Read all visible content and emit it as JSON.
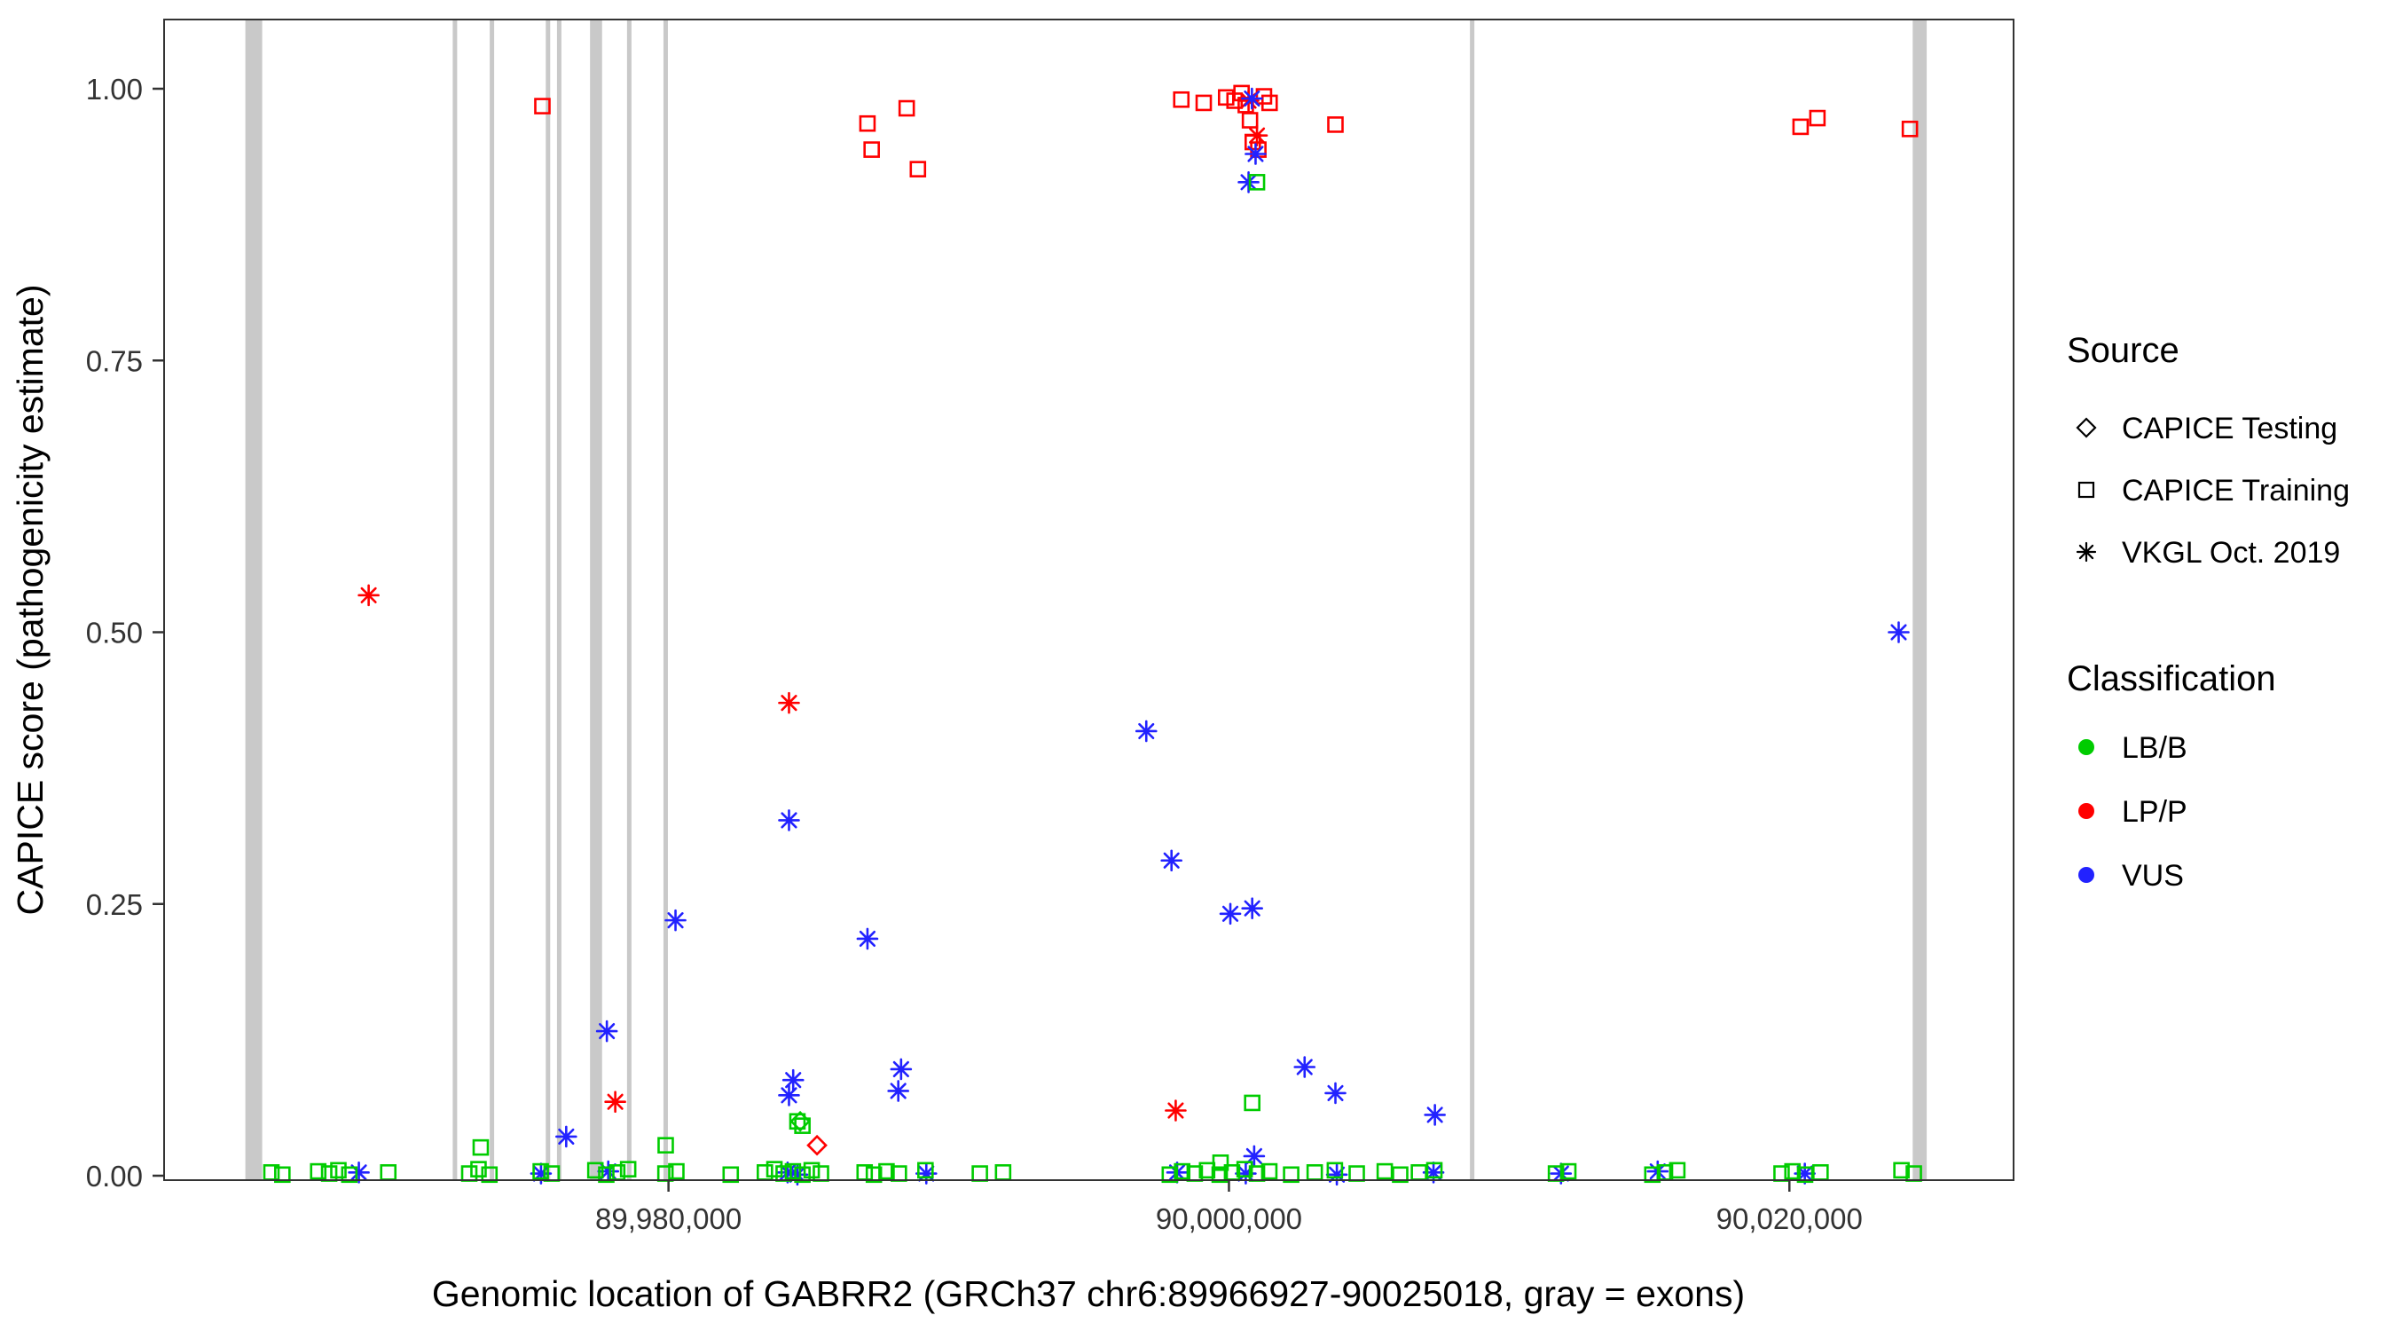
{
  "chart_data": {
    "type": "scatter",
    "title": "",
    "xlabel": "Genomic location of GABRR2 (GRCh37 chr6:89966927-90025018, gray = exons)",
    "ylabel": "CAPICE score (pathogenicity estimate)",
    "x_domain": [
      89962000,
      90028000
    ],
    "y_domain": [
      0,
      1
    ],
    "x_ticks": [
      {
        "value": 89980000,
        "label": "89,980,000"
      },
      {
        "value": 90000000,
        "label": "90,000,000"
      },
      {
        "value": 90020000,
        "label": "90,020,000"
      }
    ],
    "y_ticks": [
      {
        "value": 0.0,
        "label": "0.00"
      },
      {
        "value": 0.25,
        "label": "0.25"
      },
      {
        "value": 0.5,
        "label": "0.50"
      },
      {
        "value": 0.75,
        "label": "0.75"
      },
      {
        "value": 1.0,
        "label": "1.00"
      }
    ],
    "grid": "off",
    "legend_position": "right",
    "colors": {
      "LB/B": "#00CC00",
      "LP/P": "#FF0000",
      "VUS": "#2222FF",
      "exon": "#C9C9C9",
      "axis": "#333333"
    },
    "exons": [
      [
        89964900,
        89965500
      ],
      [
        89972300,
        89972430
      ],
      [
        89973620,
        89973750
      ],
      [
        89975620,
        89975750
      ],
      [
        89976020,
        89976150
      ],
      [
        89977200,
        89977630
      ],
      [
        89978520,
        89978650
      ],
      [
        89979820,
        89979950
      ],
      [
        90008600,
        90008730
      ],
      [
        90024400,
        90024900
      ]
    ],
    "legend": {
      "source": {
        "title": "Source",
        "items": [
          {
            "label": "CAPICE Testing",
            "source": "testing",
            "marker": "diamond"
          },
          {
            "label": "CAPICE Training",
            "source": "training",
            "marker": "square"
          },
          {
            "label": "VKGL Oct. 2019",
            "source": "vkgl",
            "marker": "asterisk"
          }
        ]
      },
      "classification": {
        "title": "Classification",
        "items": [
          {
            "label": "LB/B",
            "color": "#00CC00"
          },
          {
            "label": "LP/P",
            "color": "#FF0000"
          },
          {
            "label": "VUS",
            "color": "#2222FF"
          }
        ]
      }
    },
    "points_format": [
      "genomic_position",
      "capice_score",
      "source",
      "classification"
    ],
    "points": [
      [
        89975500,
        0.984,
        "training",
        "LP/P"
      ],
      [
        89987100,
        0.968,
        "training",
        "LP/P"
      ],
      [
        89987250,
        0.944,
        "training",
        "LP/P"
      ],
      [
        89988500,
        0.982,
        "training",
        "LP/P"
      ],
      [
        89988900,
        0.926,
        "training",
        "LP/P"
      ],
      [
        89998300,
        0.99,
        "training",
        "LP/P"
      ],
      [
        89999100,
        0.987,
        "training",
        "LP/P"
      ],
      [
        89999900,
        0.992,
        "training",
        "LP/P"
      ],
      [
        90000200,
        0.989,
        "training",
        "LP/P"
      ],
      [
        90000450,
        0.996,
        "training",
        "LP/P"
      ],
      [
        90000600,
        0.985,
        "training",
        "LP/P"
      ],
      [
        90000750,
        0.971,
        "training",
        "LP/P"
      ],
      [
        90000850,
        0.951,
        "training",
        "LP/P"
      ],
      [
        90001050,
        0.944,
        "training",
        "LP/P"
      ],
      [
        90001250,
        0.993,
        "training",
        "LP/P"
      ],
      [
        90001450,
        0.987,
        "training",
        "LP/P"
      ],
      [
        90003800,
        0.967,
        "training",
        "LP/P"
      ],
      [
        90020400,
        0.965,
        "training",
        "LP/P"
      ],
      [
        90021000,
        0.973,
        "training",
        "LP/P"
      ],
      [
        90024300,
        0.963,
        "training",
        "LP/P"
      ],
      [
        89969300,
        0.534,
        "vkgl",
        "LP/P"
      ],
      [
        89984300,
        0.435,
        "vkgl",
        "LP/P"
      ],
      [
        89978100,
        0.068,
        "vkgl",
        "LP/P"
      ],
      [
        89998100,
        0.06,
        "vkgl",
        "LP/P"
      ],
      [
        90000700,
        0.989,
        "vkgl",
        "LP/P"
      ],
      [
        90001000,
        0.957,
        "vkgl",
        "LP/P"
      ],
      [
        89985300,
        0.028,
        "testing",
        "LP/P"
      ],
      [
        90000820,
        0.991,
        "vkgl",
        "VUS"
      ],
      [
        90000950,
        0.94,
        "vkgl",
        "VUS"
      ],
      [
        90000700,
        0.914,
        "vkgl",
        "VUS"
      ],
      [
        90023900,
        0.5,
        "vkgl",
        "VUS"
      ],
      [
        89997050,
        0.409,
        "vkgl",
        "VUS"
      ],
      [
        89997950,
        0.29,
        "vkgl",
        "VUS"
      ],
      [
        90000050,
        0.241,
        "vkgl",
        "VUS"
      ],
      [
        90000830,
        0.246,
        "vkgl",
        "VUS"
      ],
      [
        89984300,
        0.327,
        "vkgl",
        "VUS"
      ],
      [
        89980250,
        0.235,
        "vkgl",
        "VUS"
      ],
      [
        89987100,
        0.218,
        "vkgl",
        "VUS"
      ],
      [
        89977800,
        0.133,
        "vkgl",
        "VUS"
      ],
      [
        89988300,
        0.098,
        "vkgl",
        "VUS"
      ],
      [
        89988200,
        0.078,
        "vkgl",
        "VUS"
      ],
      [
        89984450,
        0.088,
        "vkgl",
        "VUS"
      ],
      [
        89984300,
        0.074,
        "vkgl",
        "VUS"
      ],
      [
        90002700,
        0.1,
        "vkgl",
        "VUS"
      ],
      [
        90003800,
        0.076,
        "vkgl",
        "VUS"
      ],
      [
        90007350,
        0.056,
        "vkgl",
        "VUS"
      ],
      [
        89976350,
        0.036,
        "vkgl",
        "VUS"
      ],
      [
        90000900,
        0.018,
        "vkgl",
        "VUS"
      ],
      [
        89968950,
        0.003,
        "vkgl",
        "VUS"
      ],
      [
        89975450,
        0.002,
        "vkgl",
        "VUS"
      ],
      [
        89977850,
        0.004,
        "vkgl",
        "VUS"
      ],
      [
        89984250,
        0.003,
        "vkgl",
        "VUS"
      ],
      [
        89984600,
        0.001,
        "vkgl",
        "VUS"
      ],
      [
        89989200,
        0.002,
        "vkgl",
        "VUS"
      ],
      [
        89998150,
        0.003,
        "vkgl",
        "VUS"
      ],
      [
        90000600,
        0.002,
        "vkgl",
        "VUS"
      ],
      [
        90003850,
        0.001,
        "vkgl",
        "VUS"
      ],
      [
        90007300,
        0.003,
        "vkgl",
        "VUS"
      ],
      [
        90011850,
        0.002,
        "vkgl",
        "VUS"
      ],
      [
        90015300,
        0.004,
        "vkgl",
        "VUS"
      ],
      [
        90020550,
        0.002,
        "vkgl",
        "VUS"
      ],
      [
        89973300,
        0.026,
        "training",
        "LB/B"
      ],
      [
        89979900,
        0.028,
        "training",
        "LB/B"
      ],
      [
        89984600,
        0.05,
        "training",
        "LB/B"
      ],
      [
        89984780,
        0.046,
        "training",
        "LB/B"
      ],
      [
        90000830,
        0.067,
        "training",
        "LB/B"
      ],
      [
        89999700,
        0.012,
        "training",
        "LB/B"
      ],
      [
        90001000,
        0.914,
        "training",
        "LB/B"
      ],
      [
        89984700,
        0.05,
        "testing",
        "LB/B"
      ],
      [
        89965830,
        0.003,
        "training",
        "LB/B"
      ],
      [
        89966220,
        0.001,
        "training",
        "LB/B"
      ],
      [
        89967500,
        0.004,
        "training",
        "LB/B"
      ],
      [
        89967890,
        0.002,
        "training",
        "LB/B"
      ],
      [
        89968220,
        0.005,
        "training",
        "LB/B"
      ],
      [
        89968610,
        0.001,
        "training",
        "LB/B"
      ],
      [
        89970000,
        0.003,
        "training",
        "LB/B"
      ],
      [
        89972890,
        0.002,
        "training",
        "LB/B"
      ],
      [
        89973220,
        0.006,
        "training",
        "LB/B"
      ],
      [
        89973610,
        0.001,
        "training",
        "LB/B"
      ],
      [
        89975440,
        0.004,
        "training",
        "LB/B"
      ],
      [
        89975830,
        0.002,
        "training",
        "LB/B"
      ],
      [
        89977390,
        0.005,
        "training",
        "LB/B"
      ],
      [
        89977780,
        0.001,
        "training",
        "LB/B"
      ],
      [
        89978170,
        0.003,
        "training",
        "LB/B"
      ],
      [
        89978560,
        0.006,
        "training",
        "LB/B"
      ],
      [
        89979890,
        0.002,
        "training",
        "LB/B"
      ],
      [
        89980280,
        0.004,
        "training",
        "LB/B"
      ],
      [
        89982220,
        0.001,
        "training",
        "LB/B"
      ],
      [
        89983440,
        0.003,
        "training",
        "LB/B"
      ],
      [
        89983780,
        0.006,
        "training",
        "LB/B"
      ],
      [
        89984110,
        0.002,
        "training",
        "LB/B"
      ],
      [
        89984440,
        0.004,
        "training",
        "LB/B"
      ],
      [
        89984780,
        0.001,
        "training",
        "LB/B"
      ],
      [
        89985110,
        0.005,
        "training",
        "LB/B"
      ],
      [
        89985440,
        0.002,
        "training",
        "LB/B"
      ],
      [
        89987000,
        0.003,
        "training",
        "LB/B"
      ],
      [
        89987330,
        0.001,
        "training",
        "LB/B"
      ],
      [
        89987780,
        0.004,
        "training",
        "LB/B"
      ],
      [
        89988220,
        0.002,
        "training",
        "LB/B"
      ],
      [
        89989170,
        0.005,
        "training",
        "LB/B"
      ],
      [
        89991110,
        0.002,
        "training",
        "LB/B"
      ],
      [
        89991940,
        0.003,
        "training",
        "LB/B"
      ],
      [
        89997890,
        0.001,
        "training",
        "LB/B"
      ],
      [
        89998330,
        0.004,
        "training",
        "LB/B"
      ],
      [
        89998780,
        0.002,
        "training",
        "LB/B"
      ],
      [
        89999220,
        0.005,
        "training",
        "LB/B"
      ],
      [
        89999670,
        0.001,
        "training",
        "LB/B"
      ],
      [
        90000110,
        0.003,
        "training",
        "LB/B"
      ],
      [
        90000560,
        0.006,
        "training",
        "LB/B"
      ],
      [
        90001000,
        0.002,
        "training",
        "LB/B"
      ],
      [
        90001440,
        0.004,
        "training",
        "LB/B"
      ],
      [
        90002220,
        0.001,
        "training",
        "LB/B"
      ],
      [
        90003060,
        0.003,
        "training",
        "LB/B"
      ],
      [
        90003780,
        0.005,
        "training",
        "LB/B"
      ],
      [
        90004560,
        0.002,
        "training",
        "LB/B"
      ],
      [
        90005560,
        0.004,
        "training",
        "LB/B"
      ],
      [
        90006110,
        0.001,
        "training",
        "LB/B"
      ],
      [
        90006780,
        0.003,
        "training",
        "LB/B"
      ],
      [
        90007330,
        0.005,
        "training",
        "LB/B"
      ],
      [
        90011670,
        0.002,
        "training",
        "LB/B"
      ],
      [
        90012110,
        0.004,
        "training",
        "LB/B"
      ],
      [
        90015110,
        0.001,
        "training",
        "LB/B"
      ],
      [
        90015560,
        0.003,
        "training",
        "LB/B"
      ],
      [
        90016000,
        0.005,
        "training",
        "LB/B"
      ],
      [
        90019720,
        0.002,
        "training",
        "LB/B"
      ],
      [
        90020110,
        0.004,
        "training",
        "LB/B"
      ],
      [
        90020560,
        0.001,
        "training",
        "LB/B"
      ],
      [
        90021110,
        0.003,
        "training",
        "LB/B"
      ],
      [
        90024000,
        0.005,
        "training",
        "LB/B"
      ],
      [
        90024440,
        0.002,
        "training",
        "LB/B"
      ]
    ]
  }
}
